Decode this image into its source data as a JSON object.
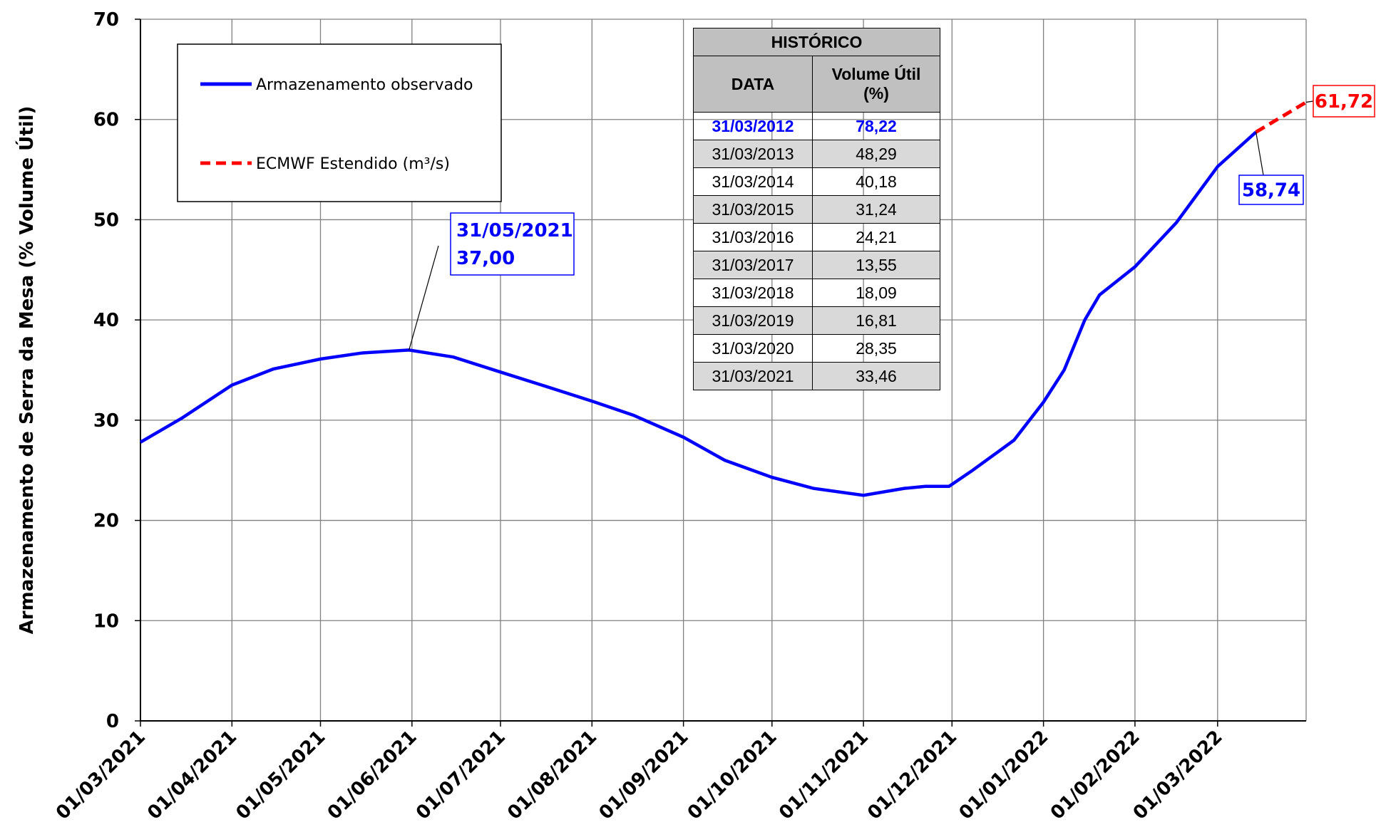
{
  "chart_data": {
    "type": "line",
    "y_label": "Armazenamento de Serra da Mesa (% Volume Útil)",
    "x": [
      "01/03/2021",
      "15/03/2021",
      "01/04/2021",
      "15/04/2021",
      "01/05/2021",
      "15/05/2021",
      "31/05/2021",
      "15/06/2021",
      "01/07/2021",
      "15/07/2021",
      "01/08/2021",
      "15/08/2021",
      "01/09/2021",
      "15/09/2021",
      "01/10/2021",
      "15/10/2021",
      "01/11/2021",
      "15/11/2021",
      "22/11/2021",
      "30/11/2021",
      "08/12/2021",
      "15/12/2021",
      "22/12/2021",
      "01/01/2022",
      "08/01/2022",
      "15/01/2022",
      "20/01/2022",
      "01/02/2022",
      "15/02/2022",
      "22/02/2022",
      "01/03/2022",
      "14/03/2022",
      "31/03/2022"
    ],
    "series": [
      {
        "name": "Armazenamento observado",
        "color": "#0000ff",
        "line_style": "solid",
        "values": [
          27.8,
          30.2,
          33.5,
          35.1,
          36.1,
          36.7,
          37.0,
          36.3,
          34.8,
          33.5,
          31.9,
          30.5,
          28.3,
          26.0,
          24.3,
          23.2,
          22.5,
          23.2,
          23.4,
          23.4,
          25.0,
          26.5,
          28.0,
          31.8,
          35.0,
          40.0,
          42.5,
          45.3,
          49.7,
          52.5,
          55.3,
          58.74,
          null
        ],
        "value_labels": [
          null,
          null,
          null,
          null,
          null,
          null,
          "37,00",
          null,
          null,
          null,
          null,
          null,
          null,
          null,
          null,
          null,
          null,
          null,
          null,
          null,
          null,
          null,
          null,
          null,
          null,
          null,
          null,
          null,
          null,
          null,
          null,
          "58,74",
          null
        ]
      },
      {
        "name": "ECMWF Estendido (m³/s)",
        "color": "#ff0000",
        "line_style": "dashed",
        "values": [
          null,
          null,
          null,
          null,
          null,
          null,
          null,
          null,
          null,
          null,
          null,
          null,
          null,
          null,
          null,
          null,
          null,
          null,
          null,
          null,
          null,
          null,
          null,
          null,
          null,
          null,
          null,
          null,
          null,
          null,
          null,
          58.74,
          61.72
        ],
        "value_labels": [
          null,
          null,
          null,
          null,
          null,
          null,
          null,
          null,
          null,
          null,
          null,
          null,
          null,
          null,
          null,
          null,
          null,
          null,
          null,
          null,
          null,
          null,
          null,
          null,
          null,
          null,
          null,
          null,
          null,
          null,
          null,
          null,
          "61,72"
        ]
      }
    ],
    "xlim": [
      "01/03/2021",
      "31/03/2022"
    ],
    "xticks": [
      "01/03/2021",
      "01/04/2021",
      "01/05/2021",
      "01/06/2021",
      "01/07/2021",
      "01/08/2021",
      "01/09/2021",
      "01/10/2021",
      "01/11/2021",
      "01/12/2021",
      "01/01/2022",
      "01/02/2022",
      "01/03/2022"
    ],
    "ylim": [
      0,
      70
    ],
    "yticks": [
      0,
      10,
      20,
      30,
      40,
      50,
      60,
      70
    ],
    "grid": true,
    "table": {
      "title": "HISTÓRICO",
      "headers": [
        "DATA",
        "Volume Útil (%)"
      ],
      "rows": [
        [
          "31/03/2012",
          "78,22"
        ],
        [
          "31/03/2013",
          "48,29"
        ],
        [
          "31/03/2014",
          "40,18"
        ],
        [
          "31/03/2015",
          "31,24"
        ],
        [
          "31/03/2016",
          "24,21"
        ],
        [
          "31/03/2017",
          "13,55"
        ],
        [
          "31/03/2018",
          "18,09"
        ],
        [
          "31/03/2019",
          "16,81"
        ],
        [
          "31/03/2020",
          "28,35"
        ],
        [
          "31/03/2021",
          "33,46"
        ]
      ]
    }
  }
}
